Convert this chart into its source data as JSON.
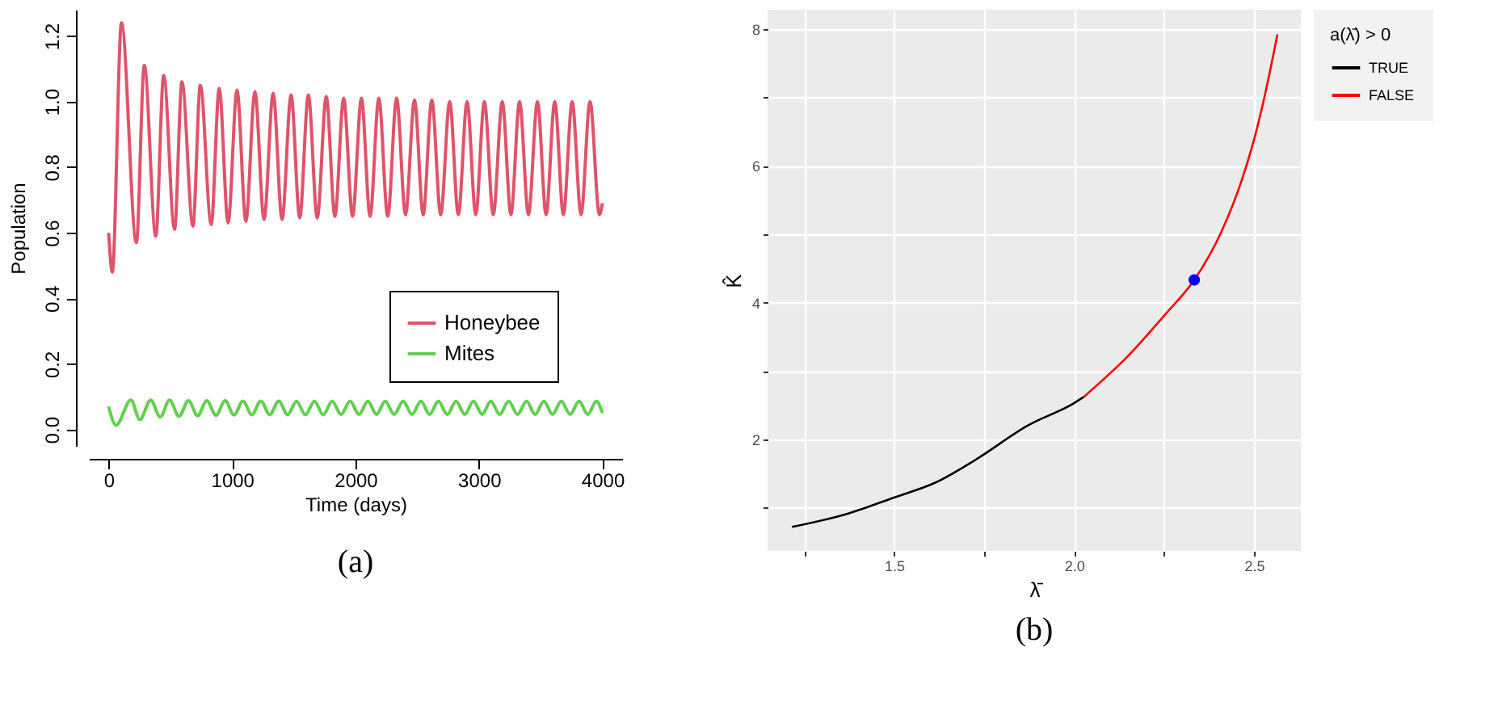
{
  "chart_data": [
    {
      "type": "line",
      "title": "(a)",
      "xlabel": "Time (days)",
      "ylabel": "Population",
      "xlim": [
        -160,
        4160
      ],
      "ylim": [
        -0.05,
        1.28
      ],
      "xticks": [
        0,
        1000,
        2000,
        3000,
        4000
      ],
      "yticks": [
        {
          "value": 0,
          "label": "0.0"
        },
        {
          "value": 0.2,
          "label": "0.2"
        },
        {
          "value": 0.4,
          "label": "0.4"
        },
        {
          "value": 0.6,
          "label": "0.6"
        },
        {
          "value": 0.8,
          "label": "0.8"
        },
        {
          "value": 1.0,
          "label": "1.0"
        },
        {
          "value": 1.2,
          "label": "1.2"
        }
      ],
      "grid": false,
      "legend": "bottom right",
      "marker": "none",
      "line_style": "solid",
      "series": [
        {
          "name": "Honeybee",
          "color": "#df536b",
          "x": [
            0,
            30,
            104,
            225,
            289,
            382,
            446,
            534,
            594,
            683,
            743,
            831,
            896,
            968,
            1040,
            1112,
            1185,
            1259,
            1333,
            1405,
            1478,
            1548,
            1618,
            1690,
            1763,
            1833,
            1904,
            1976,
            2048,
            2118,
            2189,
            2261,
            2333,
            2405,
            2478,
            2548,
            2618,
            2690,
            2763,
            2833,
            2904,
            2974,
            3044,
            3116,
            3189,
            3259,
            3329,
            3401,
            3474,
            3544,
            3614,
            3684,
            3755,
            3827,
            3900,
            3976,
            4000
          ],
          "values": [
            0.6,
            0.48,
            1.24,
            0.57,
            1.11,
            0.59,
            1.08,
            0.61,
            1.06,
            0.62,
            1.05,
            0.625,
            1.04,
            0.63,
            1.035,
            0.635,
            1.03,
            0.64,
            1.025,
            0.64,
            1.02,
            0.645,
            1.02,
            0.645,
            1.015,
            0.65,
            1.01,
            0.65,
            1.01,
            0.65,
            1.01,
            0.65,
            1.01,
            0.655,
            1.005,
            0.655,
            1.005,
            0.655,
            1.0,
            0.655,
            1.0,
            0.655,
            1.0,
            0.655,
            1.0,
            0.655,
            1.0,
            0.655,
            1.0,
            0.655,
            1.0,
            0.655,
            1.0,
            0.655,
            1.0,
            0.655,
            0.69
          ]
        },
        {
          "name": "Mites",
          "color": "#61d04f",
          "x": [
            0,
            60,
            181,
            253,
            341,
            418,
            494,
            570,
            647,
            721,
            795,
            870,
            944,
            1016,
            1088,
            1160,
            1233,
            1305,
            1378,
            1450,
            1522,
            1594,
            1667,
            1739,
            1811,
            1883,
            1956,
            2028,
            2100,
            2170,
            2241,
            2313,
            2386,
            2458,
            2530,
            2600,
            2671,
            2743,
            2815,
            2885,
            2956,
            3026,
            3096,
            3168,
            3241,
            3313,
            3385,
            3455,
            3526,
            3596,
            3667,
            3739,
            3811,
            3881,
            3952,
            4000
          ],
          "values": [
            0.07,
            0.013,
            0.09,
            0.03,
            0.09,
            0.038,
            0.09,
            0.04,
            0.088,
            0.042,
            0.088,
            0.043,
            0.088,
            0.044,
            0.087,
            0.045,
            0.087,
            0.045,
            0.087,
            0.045,
            0.086,
            0.045,
            0.086,
            0.045,
            0.086,
            0.046,
            0.086,
            0.046,
            0.086,
            0.046,
            0.086,
            0.046,
            0.086,
            0.046,
            0.086,
            0.046,
            0.086,
            0.046,
            0.086,
            0.046,
            0.086,
            0.046,
            0.086,
            0.046,
            0.086,
            0.046,
            0.086,
            0.046,
            0.086,
            0.046,
            0.086,
            0.046,
            0.086,
            0.046,
            0.086,
            0.05
          ]
        }
      ]
    },
    {
      "type": "line",
      "title": "(b)",
      "xlabel": "λ̄",
      "ylabel": "K̂",
      "legend_title": "a(λ̄) > 0",
      "xlim": [
        1.149,
        2.63
      ],
      "ylim": [
        0.37,
        8.28
      ],
      "xticks": [
        {
          "value": 1.25,
          "label": null
        },
        1.5,
        {
          "value": 1.75,
          "label": null
        },
        {
          "value": 2.0,
          "label": "2.0"
        },
        {
          "value": 2.25,
          "label": null
        },
        2.5
      ],
      "yticks": [
        {
          "value": 1,
          "label": null
        },
        2,
        {
          "value": 3,
          "label": null
        },
        4,
        {
          "value": 5,
          "label": null
        },
        6,
        {
          "value": 7,
          "label": null
        },
        8
      ],
      "grid": true,
      "legend": "right",
      "line_style": "solid",
      "series": [
        {
          "name": "TRUE",
          "color": "#000000",
          "x": [
            1.217,
            1.375,
            1.5,
            1.616,
            1.729,
            1.871,
            2.0,
            2.027
          ],
          "values": [
            0.72,
            0.92,
            1.15,
            1.37,
            1.71,
            2.2,
            2.53,
            2.62
          ]
        },
        {
          "name": "FALSE",
          "color": "#ff0000",
          "x": [
            2.027,
            2.154,
            2.254,
            2.334,
            2.409,
            2.466,
            2.508,
            2.544,
            2.565
          ],
          "values": [
            2.62,
            3.24,
            3.83,
            4.33,
            5.03,
            5.79,
            6.54,
            7.37,
            7.92
          ]
        },
        {
          "type": "scatter",
          "color": "#0000ff",
          "marker": "circle",
          "x": [
            2.334
          ],
          "values": [
            4.33
          ]
        }
      ]
    }
  ]
}
